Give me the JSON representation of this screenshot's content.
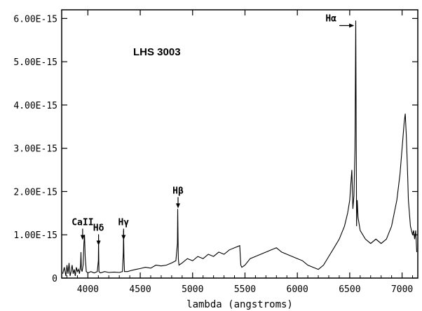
{
  "chart_data": {
    "type": "line",
    "title": "LHS 3003",
    "xlabel": "lambda (angstroms)",
    "ylabel": "",
    "xlim": [
      3750,
      7150
    ],
    "ylim": [
      0,
      6.2e-15
    ],
    "x_ticks": [
      {
        "value": 4000,
        "label": "4000"
      },
      {
        "value": 4500,
        "label": "4500"
      },
      {
        "value": 5000,
        "label": "5000"
      },
      {
        "value": 5500,
        "label": "5500"
      },
      {
        "value": 6000,
        "label": "6000"
      },
      {
        "value": 6500,
        "label": "6500"
      },
      {
        "value": 7000,
        "label": "7000"
      }
    ],
    "y_ticks": [
      {
        "value": 0,
        "label": "0"
      },
      {
        "value": 1e-15,
        "label": "1.00E-15"
      },
      {
        "value": 2e-15,
        "label": "2.00E-15"
      },
      {
        "value": 3e-15,
        "label": "3.00E-15"
      },
      {
        "value": 4e-15,
        "label": "4.00E-15"
      },
      {
        "value": 5e-15,
        "label": "5.00E-15"
      },
      {
        "value": 6e-15,
        "label": "6.00E-15"
      }
    ],
    "series": [
      {
        "x": [
          3760,
          3775,
          3790,
          3800,
          3810,
          3820,
          3830,
          3840,
          3850,
          3860,
          3870,
          3880,
          3890,
          3900,
          3910,
          3920,
          3930,
          3934,
          3938,
          3945,
          3955,
          3962,
          3968,
          3974,
          3985,
          4000,
          4030,
          4060,
          4090,
          4100,
          4102,
          4104,
          4106,
          4120,
          4160,
          4200,
          4250,
          4300,
          4330,
          4338,
          4341,
          4344,
          4350,
          4380,
          4420,
          4460,
          4500,
          4550,
          4600,
          4650,
          4700,
          4750,
          4800,
          4840,
          4855,
          4858,
          4861,
          4864,
          4870,
          4900,
          4950,
          5000,
          5050,
          5100,
          5150,
          5200,
          5250,
          5300,
          5350,
          5400,
          5450,
          5460,
          5470,
          5500,
          5550,
          5600,
          5650,
          5700,
          5750,
          5800,
          5850,
          5900,
          5950,
          6000,
          6050,
          6100,
          6150,
          6200,
          6250,
          6300,
          6350,
          6400,
          6450,
          6480,
          6500,
          6520,
          6530,
          6540,
          6550,
          6558,
          6562,
          6566,
          6572,
          6580,
          6600,
          6650,
          6700,
          6750,
          6800,
          6850,
          6900,
          6950,
          6980,
          7000,
          7020,
          7030,
          7040,
          7050,
          7060,
          7080,
          7100,
          7110,
          7120,
          7130,
          7140
        ],
        "y": [
          1e-16,
          2.5e-16,
          5e-17,
          3e-16,
          1e-16,
          3.5e-16,
          5e-17,
          1.5e-16,
          3e-16,
          1e-16,
          2e-16,
          5e-17,
          2.5e-16,
          1.5e-16,
          2e-16,
          1e-16,
          3e-16,
          6e-16,
          2e-16,
          1.5e-16,
          3e-16,
          8e-16,
          1e-15,
          5e-16,
          1.5e-16,
          1.2e-16,
          1.5e-16,
          1.2e-16,
          1.5e-16,
          4e-16,
          9e-16,
          4.5e-16,
          1.5e-16,
          1.2e-16,
          1.5e-16,
          1.3e-16,
          1.4e-16,
          1.3e-16,
          1.5e-16,
          6e-16,
          1.1e-15,
          5e-16,
          1.5e-16,
          1.5e-16,
          1.8e-16,
          2e-16,
          2.2e-16,
          2.5e-16,
          2.3e-16,
          3e-16,
          2.8e-16,
          3e-16,
          3.5e-16,
          4e-16,
          8e-16,
          1.6e-15,
          9e-16,
          4.5e-16,
          3e-16,
          3.5e-16,
          4.5e-16,
          4e-16,
          5e-16,
          4.5e-16,
          5.5e-16,
          5e-16,
          6e-16,
          5.5e-16,
          6.5e-16,
          7e-16,
          7.5e-16,
          3e-16,
          2.5e-16,
          3e-16,
          4.5e-16,
          5e-16,
          5.5e-16,
          6e-16,
          6.5e-16,
          7e-16,
          6e-16,
          5.5e-16,
          5e-16,
          4.5e-16,
          4e-16,
          3e-16,
          2.5e-16,
          2e-16,
          3e-16,
          5e-16,
          7e-16,
          9e-16,
          1.2e-15,
          1.5e-15,
          1.8e-15,
          2.5e-15,
          1.6e-15,
          1.9e-15,
          3e-15,
          5.95e-15,
          3.5e-15,
          1.2e-15,
          1.8e-15,
          1.4e-15,
          1.1e-15,
          9e-16,
          8e-16,
          9e-16,
          8e-16,
          9e-16,
          1.2e-15,
          1.8e-15,
          2.4e-15,
          3e-15,
          3.6e-15,
          3.8e-15,
          3.3e-15,
          2.6e-15,
          1.8e-15,
          1.2e-15,
          1e-15,
          1.1e-15,
          9e-16,
          1.1e-15,
          6e-16
        ]
      }
    ],
    "annotations": [
      {
        "label": "CaII",
        "x": 3950,
        "arrow_target_y": 8.5e-16
      },
      {
        "label": "Hδ",
        "x": 4102,
        "arrow_target_y": 7.2e-16
      },
      {
        "label": "Hγ",
        "x": 4341,
        "arrow_target_y": 8.5e-16
      },
      {
        "label": "Hβ",
        "x": 4861,
        "arrow_target_y": 1.58e-15
      },
      {
        "label": "Hα",
        "x": 6562,
        "arrow_target_y": 5.9e-15
      }
    ]
  }
}
